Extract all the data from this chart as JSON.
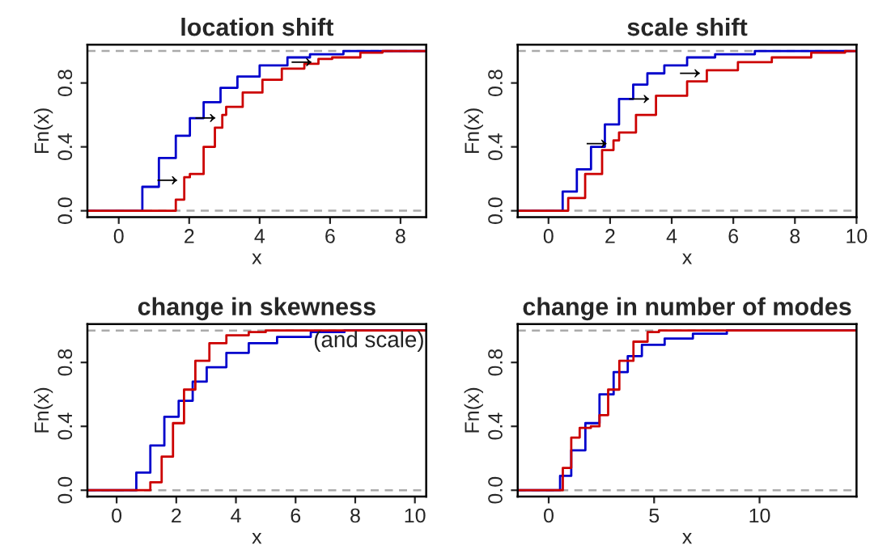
{
  "chart_data": [
    {
      "type": "step",
      "title": "location shift",
      "xlabel": "x",
      "ylabel": "Fn(x)",
      "xlim": [
        -0.89,
        8.73
      ],
      "ylim": [
        -0.04,
        1.04
      ],
      "xticks": [
        0,
        2,
        4,
        6,
        8
      ],
      "yticks": [
        {
          "value": 0,
          "label": "0.0"
        },
        {
          "value": 0.4,
          "label": "0.4"
        },
        {
          "value": 0.8,
          "label": "0.8"
        }
      ],
      "series": [
        {
          "color": "#0000cc",
          "x": [
            -0.89,
            0.19,
            0.67,
            1.14,
            1.62,
            2.02,
            2.41,
            2.89,
            3.37,
            4.0,
            4.79,
            5.43,
            6.38,
            8.73
          ],
          "values": [
            0,
            0,
            0.15,
            0.33,
            0.47,
            0.58,
            0.68,
            0.77,
            0.84,
            0.91,
            0.96,
            0.98,
            1.0,
            1.0
          ]
        },
        {
          "color": "#cc0000",
          "x": [
            -0.89,
            1.38,
            1.62,
            1.86,
            2.02,
            2.41,
            2.73,
            2.94,
            3.05,
            3.52,
            4.08,
            4.63,
            5.27,
            5.67,
            6.06,
            6.86,
            7.49,
            8.73
          ],
          "values": [
            0,
            0,
            0.07,
            0.21,
            0.23,
            0.4,
            0.52,
            0.6,
            0.65,
            0.74,
            0.82,
            0.89,
            0.92,
            0.95,
            0.96,
            0.99,
            1.0,
            1.0
          ]
        }
      ],
      "ref_lines": [
        {
          "axis": "y",
          "value": 0,
          "color": "#aaaaaa",
          "line_style": "dashed"
        },
        {
          "axis": "y",
          "value": 1,
          "color": "#aaaaaa",
          "line_style": "dashed"
        }
      ],
      "annotations": [
        {
          "text": "→",
          "x": 1.86,
          "y": 0.21
        },
        {
          "text": "→",
          "x": 2.94,
          "y": 0.6
        },
        {
          "text": "→",
          "x": 5.67,
          "y": 0.95
        }
      ]
    },
    {
      "type": "step",
      "title": "scale shift",
      "xlabel": "x",
      "ylabel": "Fn(x)",
      "xlim": [
        -1.0,
        10.0
      ],
      "ylim": [
        -0.04,
        1.04
      ],
      "xticks": [
        0,
        2,
        4,
        6,
        8,
        10
      ],
      "yticks": [
        {
          "value": 0,
          "label": "0.0"
        },
        {
          "value": 0.4,
          "label": "0.4"
        },
        {
          "value": 0.8,
          "label": "0.8"
        }
      ],
      "series": [
        {
          "color": "#0000cc",
          "x": [
            -1.0,
            0.09,
            0.46,
            0.92,
            1.38,
            1.83,
            2.29,
            2.75,
            3.21,
            3.76,
            4.5,
            5.41,
            6.7,
            10.0
          ],
          "values": [
            0,
            0,
            0.12,
            0.26,
            0.4,
            0.54,
            0.7,
            0.79,
            0.86,
            0.91,
            0.96,
            0.98,
            1.0,
            1.0
          ]
        },
        {
          "color": "#cc0000",
          "x": [
            -1.0,
            0.18,
            0.64,
            1.19,
            1.74,
            2.11,
            2.29,
            2.84,
            3.49,
            4.5,
            5.14,
            6.15,
            7.25,
            8.53,
            9.63,
            10.0
          ],
          "values": [
            0,
            0,
            0.08,
            0.23,
            0.38,
            0.44,
            0.49,
            0.6,
            0.72,
            0.81,
            0.88,
            0.93,
            0.96,
            0.99,
            1.0,
            1.0
          ]
        }
      ],
      "ref_lines": [
        {
          "axis": "y",
          "value": 0,
          "color": "#aaaaaa",
          "line_style": "dashed"
        },
        {
          "axis": "y",
          "value": 1,
          "color": "#aaaaaa",
          "line_style": "dashed"
        }
      ],
      "annotations": [
        {
          "text": "→",
          "x": 2.11,
          "y": 0.44
        },
        {
          "text": "→",
          "x": 3.49,
          "y": 0.72
        },
        {
          "text": "→",
          "x": 5.14,
          "y": 0.88
        }
      ]
    },
    {
      "type": "step",
      "title": "change in skewness",
      "xlabel": "x",
      "ylabel": "Fn(x)",
      "xlim": [
        -0.98,
        10.38
      ],
      "ylim": [
        -0.04,
        1.04
      ],
      "xticks": [
        0,
        2,
        4,
        6,
        8,
        10
      ],
      "yticks": [
        {
          "value": 0,
          "label": "0.0"
        },
        {
          "value": 0.4,
          "label": "0.4"
        },
        {
          "value": 0.8,
          "label": "0.8"
        }
      ],
      "series": [
        {
          "color": "#0000cc",
          "x": [
            -0.98,
            0.25,
            0.66,
            1.13,
            1.6,
            2.08,
            2.55,
            3.02,
            3.68,
            4.43,
            5.38,
            6.51,
            7.64,
            10.38
          ],
          "values": [
            0,
            0,
            0.11,
            0.28,
            0.46,
            0.56,
            0.68,
            0.77,
            0.86,
            0.92,
            0.96,
            0.99,
            1.0,
            1.0
          ]
        },
        {
          "color": "#cc0000",
          "x": [
            -0.98,
            0.75,
            1.13,
            1.51,
            1.89,
            2.26,
            2.64,
            3.11,
            3.68,
            4.43,
            5.0,
            10.38
          ],
          "values": [
            0,
            0,
            0.05,
            0.21,
            0.42,
            0.63,
            0.81,
            0.92,
            0.97,
            0.99,
            1.0,
            1.0
          ]
        }
      ],
      "ref_lines": [
        {
          "axis": "y",
          "value": 0,
          "color": "#aaaaaa",
          "line_style": "dashed"
        },
        {
          "axis": "y",
          "value": 1,
          "color": "#aaaaaa",
          "line_style": "dashed"
        }
      ],
      "annotations": [
        "(and scale)"
      ]
    },
    {
      "type": "step",
      "title": "change in number of modes",
      "xlabel": "x",
      "ylabel": "Fn(x)",
      "xlim": [
        -1.47,
        14.6
      ],
      "ylim": [
        -0.04,
        1.04
      ],
      "xticks": [
        0,
        5,
        10
      ],
      "yticks": [
        {
          "value": 0,
          "label": "0.0"
        },
        {
          "value": 0.4,
          "label": "0.4"
        },
        {
          "value": 0.8,
          "label": "0.8"
        }
      ],
      "series": [
        {
          "color": "#0000cc",
          "x": [
            -1.47,
            0.13,
            0.54,
            1.07,
            1.74,
            2.41,
            3.08,
            3.75,
            4.42,
            5.5,
            6.84,
            8.45,
            14.6
          ],
          "values": [
            0,
            0,
            0.09,
            0.25,
            0.42,
            0.6,
            0.74,
            0.84,
            0.91,
            0.95,
            0.98,
            1.0,
            1.0
          ]
        },
        {
          "color": "#cc0000",
          "x": [
            -1.47,
            0.27,
            0.67,
            1.07,
            1.47,
            2.0,
            2.41,
            2.82,
            3.35,
            4.02,
            4.69,
            5.23,
            14.6
          ],
          "values": [
            0,
            0,
            0.14,
            0.33,
            0.39,
            0.4,
            0.47,
            0.63,
            0.81,
            0.93,
            0.99,
            1.0,
            1.0
          ]
        }
      ],
      "ref_lines": [
        {
          "axis": "y",
          "value": 0,
          "color": "#aaaaaa",
          "line_style": "dashed"
        },
        {
          "axis": "y",
          "value": 1,
          "color": "#aaaaaa",
          "line_style": "dashed"
        }
      ]
    }
  ]
}
